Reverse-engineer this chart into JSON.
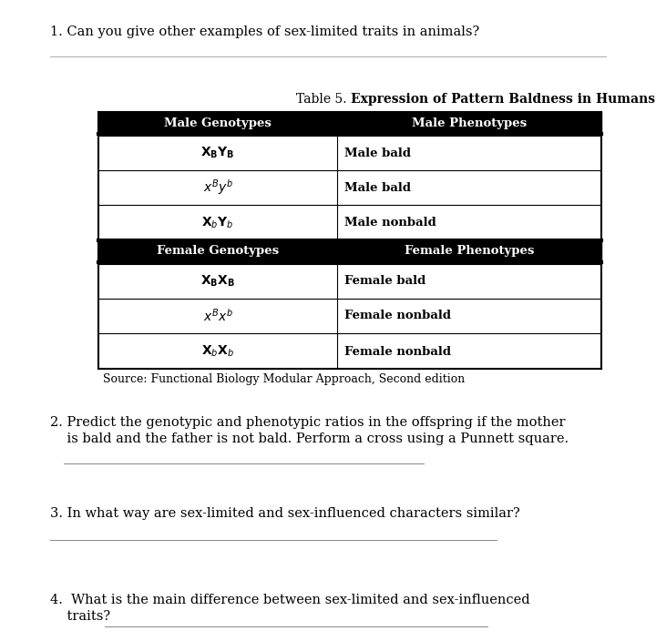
{
  "bg_color": "#ffffff",
  "q1": "1. Can you give other examples of sex-limited traits in animals?",
  "table_title_normal": "Table 5. ",
  "table_title_bold": "Expression of Pattern Baldness in Humans",
  "header1_row1": "Male Genotypes",
  "header2_row1": "Male Phenotypes",
  "header1_row2": "Female Genotypes",
  "header2_row2": "Female Phenotypes",
  "header_bg": "#000000",
  "header_fg": "#ffffff",
  "source": "Source: Functional Biology Modular Approach, Second edition",
  "q2_line1": "2. Predict the genotypic and phenotypic ratios in the offspring if the mother",
  "q2_line2": "    is bald and the father is not bald. Perform a cross using a Punnett square.",
  "q3": "3. In what way are sex-limited and sex-influenced characters similar?",
  "q4_line1": "4.  What is the main difference between sex-limited and sex-influenced",
  "q4_line2": "    traits?",
  "font_size_q": 10.5,
  "font_size_table": 9.5,
  "font_size_genotype": 10
}
